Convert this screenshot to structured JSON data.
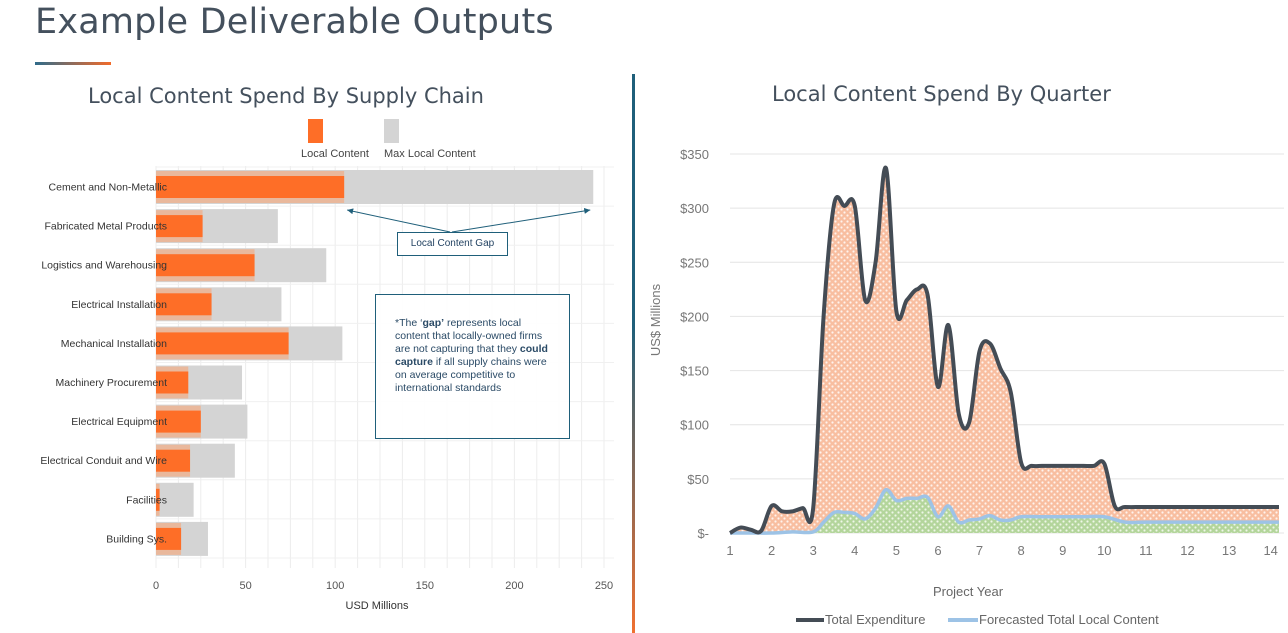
{
  "page": {
    "title": "Example Deliverable Outputs"
  },
  "colors": {
    "local": "#fe6e27",
    "max": "#d4d4d4",
    "total_line": "#444c55",
    "forecast_line": "#9dc3e6",
    "accent": "#1f5f7a"
  },
  "left_chart": {
    "title": "Local Content Spend By Supply Chain",
    "note": {
      "before_gap": "*The ‘",
      "gap": "gap’",
      "middle": " represents local content that locally-owned firms are not capturing that they ",
      "could": "could capture",
      "after": " if all supply chains were on average competitive to international standards"
    },
    "annotation": "Local Content Gap"
  },
  "right_chart": {
    "title": "Local Content Spend By Quarter"
  },
  "chart_data": [
    {
      "type": "bar",
      "orientation": "horizontal",
      "title": "Local Content Spend By Supply Chain",
      "categories": [
        "Cement and Non-Metallic",
        "Fabricated Metal Products",
        "Logistics and Warehousing",
        "Electrical Installation",
        "Mechanical Installation",
        "Machinery Procurement",
        "Electrical Equipment",
        "Electrical Conduit and Wire",
        "Facilities",
        "Building Sys."
      ],
      "series": [
        {
          "name": "Local Content",
          "values": [
            105,
            26,
            55,
            31,
            74,
            18,
            25,
            19,
            2,
            14
          ]
        },
        {
          "name": "Max Local Content",
          "values": [
            244,
            68,
            95,
            70,
            104,
            48,
            51,
            44,
            21,
            29
          ]
        }
      ],
      "xlabel": "USD Millions",
      "ylabel": "",
      "xlim": [
        0,
        250
      ],
      "xticks": [
        "0",
        "50",
        "100",
        "150",
        "200",
        "250"
      ],
      "grid": true,
      "legend": "top"
    },
    {
      "type": "area",
      "title": "Local Content Spend By Quarter",
      "xlabel": "Project Year",
      "ylabel": "US$ Millions",
      "xlim": [
        1,
        14.2
      ],
      "ylim": [
        0,
        350
      ],
      "xticks": [
        "1",
        "2",
        "3",
        "4",
        "5",
        "6",
        "7",
        "8",
        "9",
        "10",
        "11",
        "12",
        "13",
        "14"
      ],
      "yticks": [
        {
          "value": 0,
          "label": "$-"
        },
        {
          "value": 50,
          "label": "$50"
        },
        {
          "value": 100,
          "label": "$100"
        },
        {
          "value": 150,
          "label": "$150"
        },
        {
          "value": 200,
          "label": "$200"
        },
        {
          "value": 250,
          "label": "$250"
        },
        {
          "value": 300,
          "label": "$300"
        },
        {
          "value": 350,
          "label": "$350"
        }
      ],
      "legend": "bottom",
      "series": [
        {
          "name": "Total Expenditure",
          "x": [
            1,
            1.25,
            1.5,
            1.75,
            2,
            2.25,
            2.5,
            2.75,
            3,
            3.25,
            3.5,
            3.75,
            4,
            4.25,
            4.5,
            4.75,
            5,
            5.25,
            5.5,
            5.75,
            6,
            6.25,
            6.5,
            6.75,
            7,
            7.25,
            7.5,
            7.75,
            8,
            8.25,
            8.5,
            8.75,
            9,
            9.25,
            9.5,
            9.75,
            10,
            10.25,
            10.5,
            11,
            12,
            13,
            14.2
          ],
          "y": [
            0,
            5,
            3,
            2,
            25,
            20,
            20,
            23,
            23,
            200,
            303,
            302,
            302,
            215,
            250,
            337,
            205,
            215,
            225,
            220,
            135,
            192,
            110,
            102,
            168,
            175,
            152,
            130,
            65,
            62,
            62,
            62,
            62,
            62,
            62,
            62,
            64,
            25,
            24,
            24,
            24,
            24,
            24
          ]
        },
        {
          "name": "Forecasted Total Local Content",
          "x": [
            1,
            1.5,
            2,
            2.5,
            3,
            3.25,
            3.5,
            3.75,
            4,
            4.25,
            4.5,
            4.75,
            5,
            5.25,
            5.5,
            5.75,
            6,
            6.25,
            6.5,
            6.75,
            7,
            7.25,
            7.5,
            7.75,
            8,
            8.5,
            9,
            9.5,
            10,
            10.5,
            11,
            12,
            13,
            14.2
          ],
          "y": [
            0,
            0,
            0,
            1,
            1,
            10,
            19,
            19,
            18,
            13,
            23,
            40,
            30,
            32,
            32,
            33,
            15,
            25,
            10,
            12,
            13,
            16,
            12,
            12,
            15,
            15,
            15,
            15,
            15,
            10,
            10,
            10,
            10,
            10
          ]
        }
      ]
    }
  ]
}
